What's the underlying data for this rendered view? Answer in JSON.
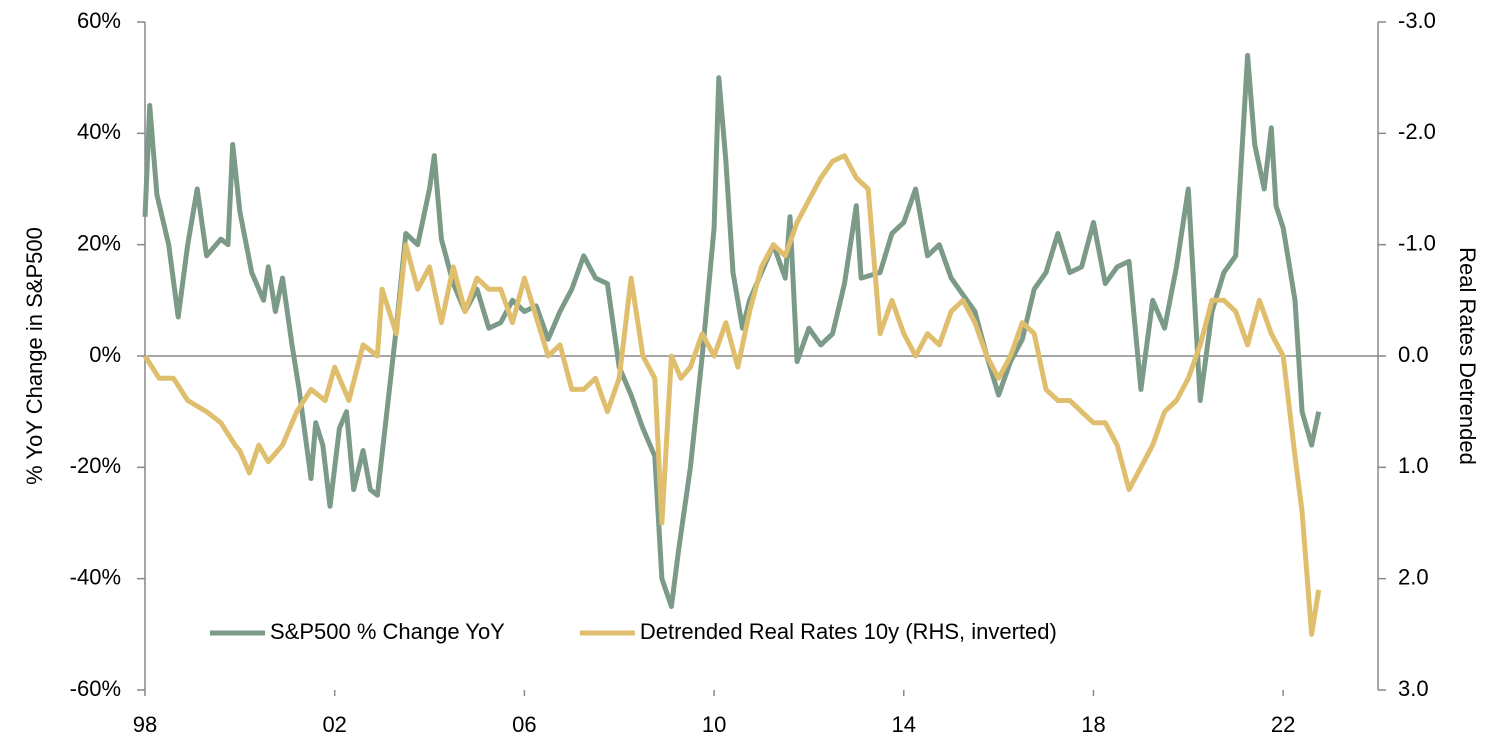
{
  "chart_data": {
    "type": "line",
    "y_label": "% YoY Change in S&P500",
    "y2_label": "Real Rates Detrended",
    "xlim": [
      1998,
      2024
    ],
    "xticks": [
      {
        "value": 1998,
        "label": "98"
      },
      {
        "value": 2002,
        "label": "02"
      },
      {
        "value": 2006,
        "label": "06"
      },
      {
        "value": 2010,
        "label": "10"
      },
      {
        "value": 2014,
        "label": "14"
      },
      {
        "value": 2018,
        "label": "18"
      },
      {
        "value": 2022,
        "label": "22"
      }
    ],
    "ylim": [
      -60,
      60
    ],
    "yticks": [
      {
        "value": -60,
        "label": "-60%"
      },
      {
        "value": -40,
        "label": "-40%"
      },
      {
        "value": -20,
        "label": "-20%"
      },
      {
        "value": 0,
        "label": "0%"
      },
      {
        "value": 20,
        "label": "20%"
      },
      {
        "value": 40,
        "label": "40%"
      },
      {
        "value": 60,
        "label": "60%"
      }
    ],
    "y2lim": [
      3,
      -3
    ],
    "y2ticks": [
      {
        "value": 3,
        "label": "3.0"
      },
      {
        "value": 2,
        "label": "2.0"
      },
      {
        "value": 1,
        "label": "1.0"
      },
      {
        "value": 0,
        "label": "0.0"
      },
      {
        "value": -1,
        "label": "-1.0"
      },
      {
        "value": -2,
        "label": "-2.0"
      },
      {
        "value": -3,
        "label": "-3.0"
      }
    ],
    "legend": "bottom",
    "series": [
      {
        "name": "S&P500 % Change YoY",
        "color": "#7c9a88",
        "x": [
          1998.0,
          1998.1,
          1998.25,
          1998.5,
          1998.7,
          1998.9,
          1999.1,
          1999.3,
          1999.6,
          1999.75,
          1999.85,
          2000.0,
          2000.25,
          2000.5,
          2000.6,
          2000.75,
          2000.9,
          2001.1,
          2001.25,
          2001.5,
          2001.6,
          2001.75,
          2001.9,
          2002.1,
          2002.25,
          2002.4,
          2002.6,
          2002.75,
          2002.9,
          2003.1,
          2003.3,
          2003.5,
          2003.75,
          2004.0,
          2004.1,
          2004.25,
          2004.5,
          2004.75,
          2005.0,
          2005.25,
          2005.5,
          2005.75,
          2006.0,
          2006.25,
          2006.5,
          2006.75,
          2007.0,
          2007.25,
          2007.5,
          2007.75,
          2008.0,
          2008.25,
          2008.5,
          2008.75,
          2008.9,
          2009.1,
          2009.25,
          2009.5,
          2009.75,
          2010.0,
          2010.1,
          2010.25,
          2010.4,
          2010.6,
          2010.75,
          2011.0,
          2011.25,
          2011.5,
          2011.6,
          2011.75,
          2012.0,
          2012.25,
          2012.5,
          2012.75,
          2013.0,
          2013.1,
          2013.5,
          2013.75,
          2014.0,
          2014.25,
          2014.5,
          2014.75,
          2015.0,
          2015.25,
          2015.5,
          2015.75,
          2016.0,
          2016.25,
          2016.5,
          2016.75,
          2017.0,
          2017.25,
          2017.5,
          2017.75,
          2018.0,
          2018.25,
          2018.5,
          2018.75,
          2019.0,
          2019.25,
          2019.5,
          2019.75,
          2020.0,
          2020.25,
          2020.5,
          2020.75,
          2021.0,
          2021.25,
          2021.4,
          2021.6,
          2021.75,
          2021.85,
          2022.0,
          2022.25,
          2022.4,
          2022.6,
          2022.75
        ],
        "values": [
          25,
          45,
          29,
          20,
          7,
          20,
          30,
          18,
          21,
          20,
          38,
          26,
          15,
          10,
          16,
          8,
          14,
          2,
          -6,
          -22,
          -12,
          -16,
          -27,
          -13,
          -10,
          -24,
          -17,
          -24,
          -25,
          -10,
          5,
          22,
          20,
          30,
          36,
          21,
          13,
          8,
          12,
          5,
          6,
          10,
          8,
          9,
          3,
          8,
          12,
          18,
          14,
          13,
          -2,
          -7,
          -13,
          -18,
          -40,
          -45,
          -35,
          -20,
          0,
          23,
          50,
          35,
          15,
          5,
          10,
          15,
          20,
          14,
          25,
          -1,
          5,
          2,
          4,
          13,
          27,
          14,
          15,
          22,
          24,
          30,
          18,
          20,
          14,
          11,
          8,
          0,
          -7,
          -1,
          3,
          12,
          15,
          22,
          15,
          16,
          24,
          13,
          16,
          17,
          -6,
          10,
          5,
          16,
          30,
          -8,
          8,
          15,
          18,
          54,
          38,
          30,
          41,
          27,
          23,
          10,
          -10,
          -16,
          -10
        ]
      },
      {
        "name": "Detrended Real Rates 10y (RHS, inverted)",
        "color": "#dfbf6e",
        "axis": "y2",
        "x": [
          1998.0,
          1998.3,
          1998.6,
          1998.9,
          1999.3,
          1999.6,
          1999.9,
          2000.0,
          2000.2,
          2000.4,
          2000.6,
          2000.9,
          2001.2,
          2001.5,
          2001.8,
          2002.0,
          2002.3,
          2002.6,
          2002.9,
          2003.0,
          2003.3,
          2003.5,
          2003.75,
          2004.0,
          2004.25,
          2004.5,
          2004.75,
          2005.0,
          2005.25,
          2005.5,
          2005.75,
          2006.0,
          2006.5,
          2006.75,
          2007.0,
          2007.25,
          2007.5,
          2007.75,
          2008.0,
          2008.25,
          2008.5,
          2008.75,
          2008.9,
          2009.1,
          2009.3,
          2009.5,
          2009.75,
          2010.0,
          2010.25,
          2010.5,
          2010.75,
          2011.0,
          2011.25,
          2011.5,
          2011.75,
          2012.0,
          2012.25,
          2012.5,
          2012.75,
          2013.0,
          2013.25,
          2013.5,
          2013.75,
          2014.0,
          2014.25,
          2014.5,
          2014.75,
          2015.0,
          2015.25,
          2015.5,
          2015.75,
          2016.0,
          2016.25,
          2016.5,
          2016.75,
          2017.0,
          2017.25,
          2017.5,
          2017.75,
          2018.0,
          2018.25,
          2018.5,
          2018.75,
          2019.0,
          2019.25,
          2019.5,
          2019.75,
          2020.0,
          2020.25,
          2020.5,
          2020.75,
          2021.0,
          2021.25,
          2021.5,
          2021.75,
          2022.0,
          2022.25,
          2022.4,
          2022.6,
          2022.75
        ],
        "values": [
          0.0,
          0.2,
          0.2,
          0.4,
          0.5,
          0.6,
          0.8,
          0.85,
          1.05,
          0.8,
          0.95,
          0.8,
          0.5,
          0.3,
          0.4,
          0.1,
          0.4,
          -0.1,
          0.0,
          -0.6,
          -0.2,
          -1.0,
          -0.6,
          -0.8,
          -0.3,
          -0.8,
          -0.4,
          -0.7,
          -0.6,
          -0.6,
          -0.3,
          -0.7,
          0.0,
          -0.1,
          0.3,
          0.3,
          0.2,
          0.5,
          0.2,
          -0.7,
          0.0,
          0.2,
          1.5,
          0.0,
          0.2,
          0.1,
          -0.2,
          0.0,
          -0.3,
          0.1,
          -0.4,
          -0.8,
          -1.0,
          -0.9,
          -1.2,
          -1.4,
          -1.6,
          -1.75,
          -1.8,
          -1.6,
          -1.5,
          -0.2,
          -0.5,
          -0.2,
          0.0,
          -0.2,
          -0.1,
          -0.4,
          -0.5,
          -0.3,
          0.0,
          0.2,
          0.0,
          -0.3,
          -0.2,
          0.3,
          0.4,
          0.4,
          0.5,
          0.6,
          0.6,
          0.8,
          1.2,
          1.0,
          0.8,
          0.5,
          0.4,
          0.2,
          -0.1,
          -0.5,
          -0.5,
          -0.4,
          -0.1,
          -0.5,
          -0.2,
          0.0,
          0.9,
          1.4,
          2.5,
          2.1
        ]
      }
    ]
  }
}
